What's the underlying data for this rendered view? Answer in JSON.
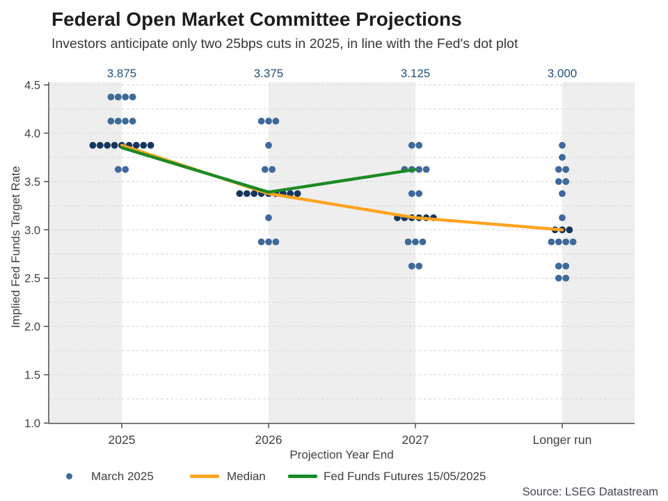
{
  "chart_data": {
    "type": "scatter",
    "title": "Federal Open Market Committee Projections",
    "subtitle": "Investors anticipate only two 25bps cuts in 2025, in line with the Fed's dot plot",
    "xlabel": "Projection Year End",
    "ylabel": "Implied Fed Funds Target Rate",
    "source": "Source: LSEG Datastream",
    "categories": [
      "2025",
      "2026",
      "2027",
      "Longer run"
    ],
    "top_median_labels": [
      "3.875",
      "3.375",
      "3.125",
      "3.000"
    ],
    "ylim": [
      1.0,
      4.5
    ],
    "ytick_labels": [
      "4.5",
      "4.0",
      "3.5",
      "3.0",
      "2.5",
      "2.0",
      "1.5",
      "1.0"
    ],
    "yticks": [
      4.5,
      4.0,
      3.5,
      3.0,
      2.5,
      2.0,
      1.5,
      1.0
    ],
    "grid_step": 0.25,
    "grid_style": "dashed",
    "dots": [
      {
        "category": "2025",
        "rows": [
          {
            "rate": 4.375,
            "count": 4
          },
          {
            "rate": 4.125,
            "count": 4
          },
          {
            "rate": 3.875,
            "count": 9,
            "is_median": true
          },
          {
            "rate": 3.625,
            "count": 2
          }
        ]
      },
      {
        "category": "2026",
        "rows": [
          {
            "rate": 4.125,
            "count": 3
          },
          {
            "rate": 3.875,
            "count": 1
          },
          {
            "rate": 3.625,
            "count": 2
          },
          {
            "rate": 3.375,
            "count": 9,
            "is_median": true
          },
          {
            "rate": 3.125,
            "count": 1
          },
          {
            "rate": 2.875,
            "count": 3
          }
        ]
      },
      {
        "category": "2027",
        "rows": [
          {
            "rate": 3.875,
            "count": 2
          },
          {
            "rate": 3.625,
            "count": 4
          },
          {
            "rate": 3.375,
            "count": 2
          },
          {
            "rate": 3.125,
            "count": 6,
            "is_median": true
          },
          {
            "rate": 2.875,
            "count": 3
          },
          {
            "rate": 2.625,
            "count": 2
          }
        ]
      },
      {
        "category": "Longer run",
        "rows": [
          {
            "rate": 3.875,
            "count": 1
          },
          {
            "rate": 3.75,
            "count": 1
          },
          {
            "rate": 3.625,
            "count": 2
          },
          {
            "rate": 3.5,
            "count": 2
          },
          {
            "rate": 3.375,
            "count": 1
          },
          {
            "rate": 3.125,
            "count": 1
          },
          {
            "rate": 3.0,
            "count": 3,
            "is_median": true
          },
          {
            "rate": 2.875,
            "count": 4
          },
          {
            "rate": 2.625,
            "count": 2
          },
          {
            "rate": 2.5,
            "count": 2
          }
        ]
      }
    ],
    "series": [
      {
        "name": "Median",
        "type": "line",
        "x": [
          "2025",
          "2026",
          "2027",
          "Longer run"
        ],
        "values": [
          3.875,
          3.375,
          3.125,
          3.0
        ]
      },
      {
        "name": "Fed Funds Futures 15/05/2025",
        "type": "line",
        "x": [
          "2025",
          "2026",
          "2027"
        ],
        "values": [
          3.85,
          3.39,
          3.625
        ]
      }
    ],
    "legend": [
      {
        "label": "March 2025",
        "marker": "dot",
        "color": "#3E6A9B"
      },
      {
        "label": "Median",
        "marker": "line",
        "color": "#FFA41E"
      },
      {
        "label": "Fed Funds Futures 15/05/2025",
        "marker": "line",
        "color": "#1B8A25"
      }
    ],
    "colors": {
      "dot": "#3E6A9B",
      "dot_median": "#14365F",
      "median_line": "#FFA41E",
      "futures_line": "#1B8A25",
      "band": "#EEEEEE",
      "grid": "#DCDCDC",
      "spine": "#4D4D4D",
      "top_label": "#1F4E7E",
      "tick_text": "#3F3F3F"
    },
    "legend_position": "bottom",
    "grid_on": true
  }
}
